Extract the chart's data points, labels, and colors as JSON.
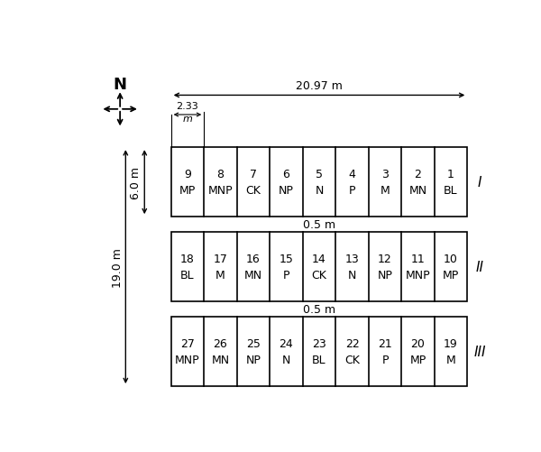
{
  "fig_width": 6.0,
  "fig_height": 5.02,
  "dpi": 100,
  "background_color": "#ffffff",
  "rows": [
    {
      "label": "I",
      "plots": [
        {
          "num": "9",
          "treat": "MP"
        },
        {
          "num": "8",
          "treat": "MNP"
        },
        {
          "num": "7",
          "treat": "CK"
        },
        {
          "num": "6",
          "treat": "NP"
        },
        {
          "num": "5",
          "treat": "N"
        },
        {
          "num": "4",
          "treat": "P"
        },
        {
          "num": "3",
          "treat": "M"
        },
        {
          "num": "2",
          "treat": "MN"
        },
        {
          "num": "1",
          "treat": "BL"
        }
      ]
    },
    {
      "label": "II",
      "plots": [
        {
          "num": "18",
          "treat": "BL"
        },
        {
          "num": "17",
          "treat": "M"
        },
        {
          "num": "16",
          "treat": "MN"
        },
        {
          "num": "15",
          "treat": "P"
        },
        {
          "num": "14",
          "treat": "CK"
        },
        {
          "num": "13",
          "treat": "N"
        },
        {
          "num": "12",
          "treat": "NP"
        },
        {
          "num": "11",
          "treat": "MNP"
        },
        {
          "num": "10",
          "treat": "MP"
        }
      ]
    },
    {
      "label": "III",
      "plots": [
        {
          "num": "27",
          "treat": "MNP"
        },
        {
          "num": "26",
          "treat": "MN"
        },
        {
          "num": "25",
          "treat": "NP"
        },
        {
          "num": "24",
          "treat": "N"
        },
        {
          "num": "23",
          "treat": "BL"
        },
        {
          "num": "22",
          "treat": "CK"
        },
        {
          "num": "21",
          "treat": "P"
        },
        {
          "num": "20",
          "treat": "MP"
        },
        {
          "num": "19",
          "treat": "M"
        }
      ]
    }
  ],
  "dim_20_97": "20.97 m",
  "dim_2_33": "2.33",
  "dim_m": "m",
  "dim_6_0": "6.0 m",
  "dim_19_0": "19.0 m",
  "dim_0_5": "0.5 m",
  "text_color": "#000000",
  "line_color": "#000000",
  "font_size_cell": 9,
  "font_size_dim": 9,
  "font_size_roman": 11,
  "font_size_N": 13
}
